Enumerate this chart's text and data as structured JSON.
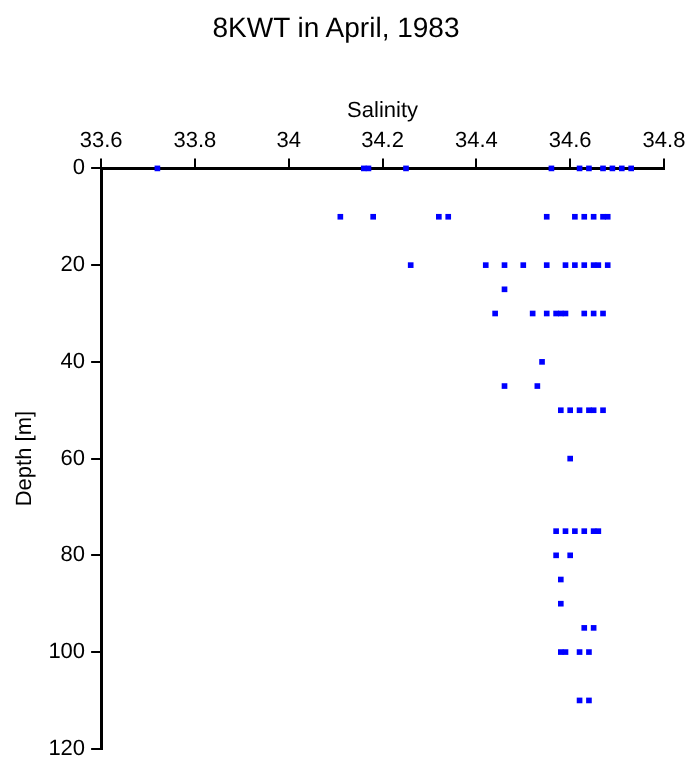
{
  "chart_data": {
    "type": "scatter",
    "title": "8KWT in April, 1983",
    "xlabel": "Salinity",
    "ylabel": "Depth [m]",
    "series": [
      {
        "color": "#0000ff",
        "x": [
          33.72,
          34.16,
          34.17,
          34.25,
          34.56,
          34.62,
          34.64,
          34.67,
          34.69,
          34.71,
          34.73,
          34.11,
          34.18,
          34.32,
          34.34,
          34.55,
          34.61,
          34.63,
          34.65,
          34.67,
          34.68,
          34.26,
          34.42,
          34.46,
          34.5,
          34.55,
          34.59,
          34.61,
          34.63,
          34.65,
          34.66,
          34.68,
          34.46,
          34.44,
          34.52,
          34.55,
          34.57,
          34.58,
          34.59,
          34.63,
          34.65,
          34.67,
          34.54,
          34.46,
          34.53,
          34.58,
          34.6,
          34.62,
          34.64,
          34.65,
          34.67,
          34.6,
          34.57,
          34.59,
          34.61,
          34.63,
          34.65,
          34.66,
          34.57,
          34.6,
          34.58,
          34.58,
          34.63,
          34.65,
          34.58,
          34.59,
          34.62,
          34.64,
          34.62,
          34.64
        ],
        "values": [
          0,
          0,
          0,
          0,
          0,
          0,
          0,
          0,
          0,
          0,
          0,
          10,
          10,
          10,
          10,
          10,
          10,
          10,
          10,
          10,
          10,
          20,
          20,
          20,
          20,
          20,
          20,
          20,
          20,
          20,
          20,
          20,
          25,
          30,
          30,
          30,
          30,
          30,
          30,
          30,
          30,
          30,
          40,
          45,
          45,
          50,
          50,
          50,
          50,
          50,
          50,
          60,
          75,
          75,
          75,
          75,
          75,
          75,
          80,
          80,
          85,
          90,
          95,
          95,
          100,
          100,
          100,
          100,
          110,
          110
        ]
      }
    ],
    "marker": "square",
    "xlim": [
      33.6,
      34.8
    ],
    "xticks": [
      33.6,
      33.8,
      34,
      34.2,
      34.4,
      34.6,
      34.8
    ],
    "ylim": [
      120,
      0
    ],
    "yticks": [
      0,
      20,
      40,
      60,
      80,
      100,
      120
    ],
    "grid": false,
    "legend": false
  }
}
